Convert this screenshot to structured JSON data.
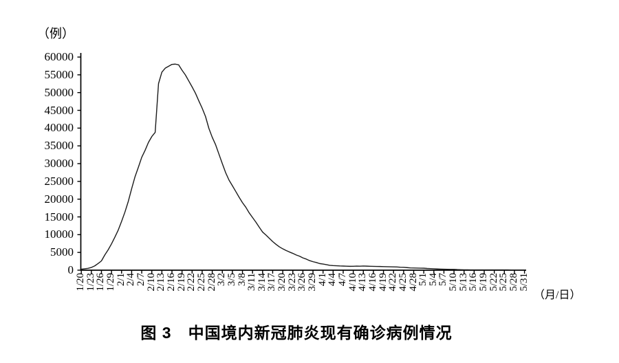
{
  "chart_data": {
    "type": "line",
    "title": "图 3　中国境内新冠肺炎现有确诊病例情况",
    "y_unit_label": "（例）",
    "x_unit_label": "（月/日）",
    "ylim": [
      0,
      60000
    ],
    "y_tick_step": 5000,
    "grid": false,
    "legend": "none",
    "background_color": "#ffffff",
    "axis_color": "#000000",
    "line_color": "#1a1a1a",
    "y_tick_labels": [
      "60000",
      "55000",
      "50000",
      "45000",
      "40000",
      "35000",
      "30000",
      "25000",
      "20000",
      "15000",
      "10000",
      "5000",
      "0"
    ],
    "x_tick_labels": [
      "1/20",
      "1/23",
      "1/26",
      "1/29",
      "2/1",
      "2/4",
      "2/7",
      "2/10",
      "2/13",
      "2/16",
      "2/19",
      "2/22",
      "2/25",
      "2/28",
      "3/2",
      "3/5",
      "3/8",
      "3/11",
      "3/14",
      "3/17",
      "3/20",
      "3/23",
      "3/26",
      "3/29",
      "4/1",
      "4/4",
      "4/7",
      "4/10",
      "4/13",
      "4/16",
      "4/19",
      "4/22",
      "4/25",
      "4/28",
      "5/1",
      "5/4",
      "5/7",
      "5/10",
      "5/13",
      "5/16",
      "5/19",
      "5/22",
      "5/25",
      "5/28",
      "5/31"
    ],
    "series": [
      {
        "name": "现有确诊病例",
        "x_start": "1/20",
        "x_end": "5/31",
        "x_step_days": 1,
        "values": [
          270,
          403,
          528,
          771,
          1208,
          1870,
          2613,
          4287,
          5739,
          7417,
          9308,
          11289,
          13748,
          16369,
          19381,
          22942,
          26302,
          28985,
          31774,
          33738,
          35982,
          37626,
          38800,
          52526,
          55748,
          56873,
          57416,
          57934,
          58016,
          57805,
          56303,
          54965,
          53284,
          51606,
          49824,
          47672,
          45604,
          43258,
          39919,
          37414,
          35329,
          32652,
          30004,
          27433,
          25352,
          23784,
          22177,
          20533,
          19016,
          17721,
          16145,
          14831,
          13526,
          12094,
          10734,
          9898,
          8976,
          8056,
          7263,
          6569,
          6013,
          5549,
          5120,
          4735,
          4287,
          3947,
          3460,
          3128,
          2691,
          2396,
          2161,
          1863,
          1727,
          1562,
          1376,
          1299,
          1242,
          1190,
          1160,
          1116,
          1089,
          1092,
          1156,
          1125,
          1170,
          1137,
          1107,
          1081,
          1058,
          1041,
          1007,
          975,
          959,
          932,
          915,
          838,
          801,
          723,
          648,
          619,
          599,
          570,
          557,
          481,
          445,
          395,
          339,
          295,
          270,
          260,
          239,
          223,
          171,
          141,
          104,
          101,
          91,
          86,
          85,
          82,
          84,
          82,
          84,
          81,
          79,
          77,
          75,
          72,
          70,
          67,
          64,
          63,
          63
        ]
      }
    ]
  }
}
